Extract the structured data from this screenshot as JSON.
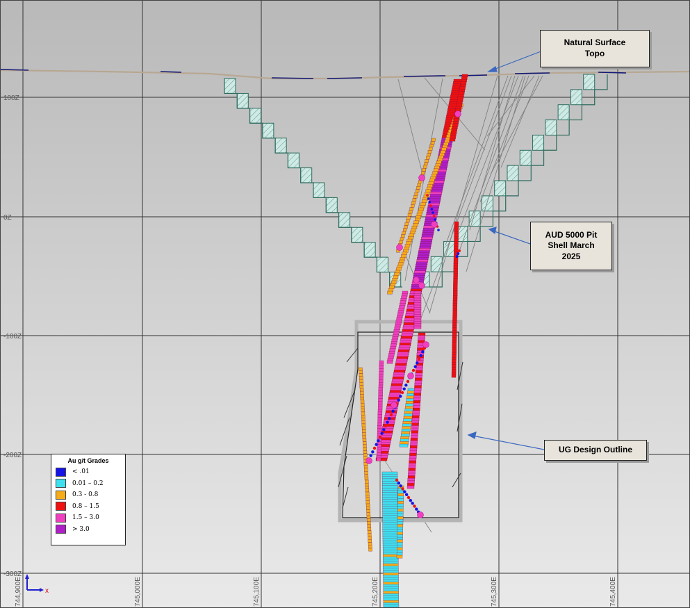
{
  "viewport": {
    "background": "#d4d4d4"
  },
  "annotations": {
    "natural_surface": "Natural Surface\nTopo",
    "pit_shell": "AUD 5000 Pit\nShell March\n2025",
    "ug_design": "UG Design Outline"
  },
  "legend": {
    "title": "Au g/t Grades",
    "items": [
      {
        "label": "< .01",
        "color": "#1414e6"
      },
      {
        "label": "0.01 – 0.2",
        "color": "#3ee0f0"
      },
      {
        "label": "0.3  - 0.8",
        "color": "#f5ac18"
      },
      {
        "label": "0.8 – 1.5",
        "color": "#ee1111"
      },
      {
        "label": "1.5 – 3.0",
        "color": "#f040c0"
      },
      {
        "label": "> 3.0",
        "color": "#b01ec8"
      }
    ]
  },
  "axes": {
    "elevation_labels": [
      "100Z",
      "0Z",
      "-100Z",
      "-200Z",
      "-300Z"
    ],
    "easting_labels": [
      "744,900E",
      "745,000E",
      "745,100E",
      "745,200E",
      "745,300E",
      "745,400E"
    ],
    "x_axis_letter": "x"
  },
  "colors": {
    "pit_shell": "#2e6b5e",
    "pit_hatch": "#cfe9e4",
    "topo": "#b8a792",
    "topo_dark": "#101878",
    "ug_outline": "#222222",
    "drillhole": "#808080"
  }
}
